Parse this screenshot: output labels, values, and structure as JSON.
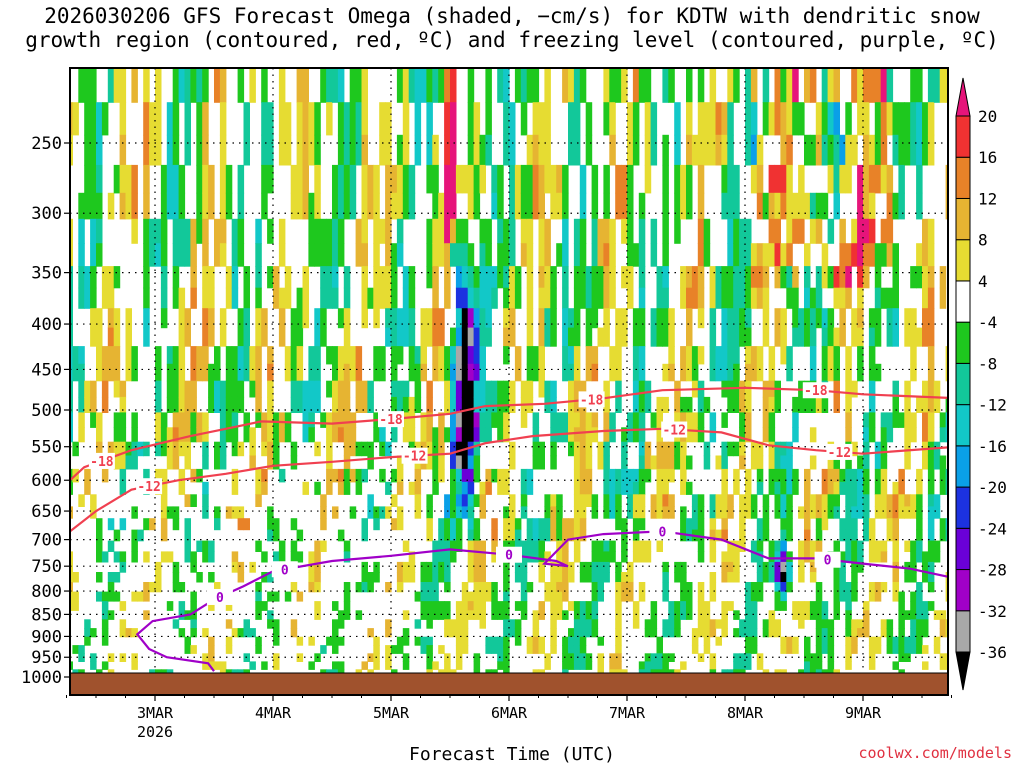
{
  "title_line1": "2026030206 GFS Forecast Omega (shaded, −cm/s) for KDTW with dendritic snow",
  "title_line2": "growth region (contoured, red, ºC) and freezing level (contoured, purple, ºC)",
  "credit": "coolwx.com/models",
  "chart_data": {
    "type": "heatmap",
    "title": "2026030206 GFS Forecast Omega (shaded, −cm/s) for KDTW with dendritic snow growth region (contoured, red, ºC) and freezing level (contoured, purple, ºC)",
    "xlabel": "Forecast Time (UTC)",
    "ylabel": "",
    "x_range_days": [
      0.25,
      7.8
    ],
    "x_ticks": [
      {
        "day": 1,
        "label": "3MAR",
        "sub": "2026"
      },
      {
        "day": 2,
        "label": "4MAR",
        "sub": ""
      },
      {
        "day": 3,
        "label": "5MAR",
        "sub": ""
      },
      {
        "day": 4,
        "label": "6MAR",
        "sub": ""
      },
      {
        "day": 5,
        "label": "7MAR",
        "sub": ""
      },
      {
        "day": 6,
        "label": "8MAR",
        "sub": ""
      },
      {
        "day": 7,
        "label": "9MAR",
        "sub": ""
      }
    ],
    "y_range_hpa": [
      1020,
      205
    ],
    "y_ticks": [
      250,
      300,
      350,
      400,
      450,
      500,
      550,
      600,
      650,
      700,
      750,
      800,
      850,
      900,
      950,
      1000
    ],
    "grid": true,
    "colorbar": {
      "levels": [
        -36,
        -32,
        -28,
        -24,
        -20,
        -16,
        -12,
        -8,
        -4,
        4,
        8,
        12,
        16,
        20
      ],
      "colors": [
        "#000000",
        "#a8a8a8",
        "#a000c8",
        "#6a00d8",
        "#1c32e0",
        "#0aa0e8",
        "#12c8c8",
        "#12c89a",
        "#1ec81e",
        "#ffffff",
        "#e6dc32",
        "#e6b432",
        "#e88228",
        "#f03232",
        "#e6147a"
      ]
    },
    "contours": [
      {
        "name": "-18",
        "color": "#f04050",
        "points": [
          [
            0.25,
            605
          ],
          [
            0.4,
            580
          ],
          [
            0.8,
            555
          ],
          [
            1.3,
            535
          ],
          [
            1.6,
            525
          ],
          [
            1.9,
            515
          ],
          [
            2.5,
            518
          ],
          [
            3.0,
            512
          ],
          [
            3.5,
            505
          ],
          [
            3.8,
            495
          ],
          [
            4.3,
            492
          ],
          [
            4.8,
            485
          ],
          [
            5.3,
            475
          ],
          [
            6.0,
            472
          ],
          [
            6.6,
            475
          ],
          [
            7.0,
            480
          ],
          [
            7.8,
            485
          ]
        ],
        "labels": [
          [
            0.55,
            "-18"
          ],
          [
            3.0,
            "-18"
          ],
          [
            4.7,
            "-18"
          ],
          [
            6.6,
            "-18"
          ]
        ]
      },
      {
        "name": "-12",
        "color": "#f04050",
        "points": [
          [
            0.25,
            690
          ],
          [
            0.5,
            650
          ],
          [
            0.8,
            615
          ],
          [
            1.2,
            600
          ],
          [
            1.6,
            590
          ],
          [
            2.0,
            578
          ],
          [
            2.5,
            572
          ],
          [
            3.0,
            565
          ],
          [
            3.5,
            560
          ],
          [
            3.8,
            545
          ],
          [
            4.2,
            535
          ],
          [
            4.8,
            528
          ],
          [
            5.3,
            525
          ],
          [
            5.8,
            530
          ],
          [
            6.2,
            548
          ],
          [
            6.6,
            555
          ],
          [
            7.0,
            560
          ],
          [
            7.8,
            550
          ]
        ],
        "labels": [
          [
            0.95,
            "-12"
          ],
          [
            3.2,
            "-12"
          ],
          [
            5.4,
            "-12"
          ],
          [
            6.8,
            "-12"
          ]
        ]
      },
      {
        "name": "0",
        "color": "#a000c8",
        "points": [
          [
            1.5,
            985
          ],
          [
            1.45,
            965
          ],
          [
            1.1,
            950
          ],
          [
            0.95,
            930
          ],
          [
            0.85,
            895
          ],
          [
            0.98,
            865
          ],
          [
            1.3,
            850
          ],
          [
            1.5,
            818
          ],
          [
            1.75,
            790
          ],
          [
            2.0,
            760
          ],
          [
            2.5,
            740
          ],
          [
            3.0,
            730
          ],
          [
            3.5,
            718
          ],
          [
            4.0,
            728
          ],
          [
            4.4,
            740
          ],
          [
            4.5,
            750
          ],
          [
            4.3,
            745
          ],
          [
            4.5,
            700
          ],
          [
            4.8,
            690
          ],
          [
            5.3,
            685
          ],
          [
            5.8,
            700
          ],
          [
            6.2,
            735
          ],
          [
            6.6,
            735
          ],
          [
            7.0,
            745
          ],
          [
            7.4,
            755
          ],
          [
            7.8,
            775
          ]
        ],
        "labels": [
          [
            1.55,
            "0"
          ],
          [
            2.1,
            "0"
          ],
          [
            4.0,
            "0"
          ],
          [
            5.3,
            "0"
          ],
          [
            6.7,
            "0"
          ]
        ]
      }
    ]
  }
}
